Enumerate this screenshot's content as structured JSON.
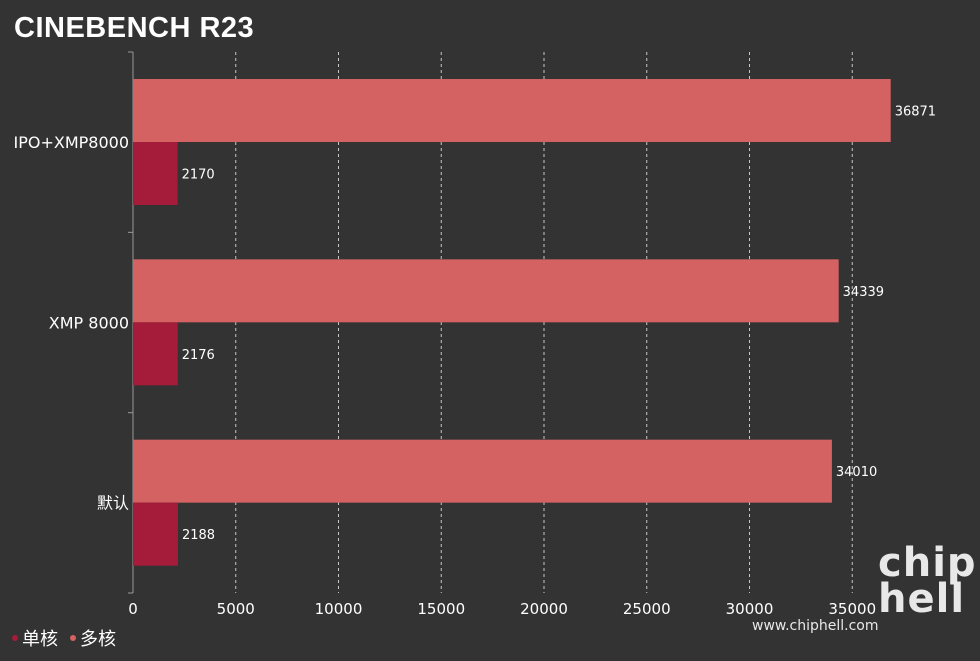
{
  "chart_data": {
    "type": "bar",
    "orientation": "horizontal",
    "title": "CINEBENCH R23",
    "categories": [
      "IPO+XMP8000",
      "XMP 8000",
      "默认"
    ],
    "series": [
      {
        "name": "多核",
        "values": [
          36871,
          34339,
          34010
        ],
        "color": "#d46262"
      },
      {
        "name": "单核",
        "values": [
          2170,
          2176,
          2188
        ],
        "color": "#a51c3a"
      }
    ],
    "xlim": [
      0,
      40000
    ],
    "xticks": [
      0,
      5000,
      10000,
      15000,
      20000,
      25000,
      30000,
      35000
    ],
    "grid": true,
    "legend_position": "bottom-left"
  },
  "legend": {
    "single_label": "单核",
    "multi_label": "多核",
    "single_color": "#a51c3a",
    "multi_color": "#d46262"
  },
  "watermark": {
    "logo_top": "chip",
    "logo_bottom": "hell",
    "url": "www.chiphell.com"
  }
}
